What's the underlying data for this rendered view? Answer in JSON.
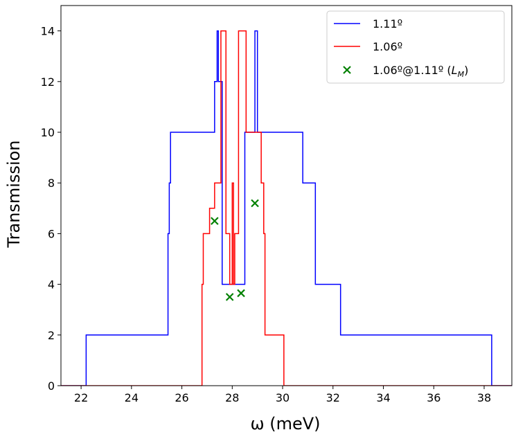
{
  "chart_data": {
    "type": "line",
    "xlabel": "ω (meV)",
    "ylabel": "Transmission",
    "xlim": [
      21.2,
      39.1
    ],
    "ylim": [
      0,
      15
    ],
    "xticks": [
      22,
      24,
      26,
      28,
      30,
      32,
      34,
      36,
      38
    ],
    "yticks": [
      0,
      2,
      4,
      6,
      8,
      10,
      12,
      14
    ],
    "grid": false,
    "legend_position": "top-right",
    "series": [
      {
        "name": "1.11º",
        "kind": "step",
        "color": "#0000ff",
        "x": [
          21.2,
          22.15,
          22.2,
          25.4,
          25.45,
          25.5,
          25.55,
          26.8,
          27.3,
          27.4,
          27.45,
          27.6,
          28.4,
          28.5,
          28.9,
          29.0,
          30.8,
          31.3,
          32.3,
          38.2,
          38.3,
          39.1
        ],
        "y": [
          0,
          0,
          2,
          2,
          6,
          8,
          10,
          10,
          12,
          14,
          12,
          4,
          4,
          10,
          14,
          10,
          8,
          4,
          2,
          2,
          0,
          0
        ]
      },
      {
        "name": "1.06º",
        "kind": "step",
        "color": "#ff0000",
        "x": [
          21.2,
          26.78,
          26.8,
          26.85,
          27.1,
          27.3,
          27.55,
          27.75,
          27.9,
          28.0,
          28.05,
          28.1,
          28.25,
          28.55,
          28.65,
          29.15,
          29.25,
          29.3,
          29.95,
          30.05,
          39.1
        ],
        "y": [
          0,
          0,
          4,
          6,
          7,
          8,
          14,
          6,
          4,
          8,
          4,
          6,
          14,
          10,
          10,
          8,
          6,
          2,
          2,
          0,
          0
        ]
      }
    ],
    "scatter": {
      "name": "1.06º@1.11º",
      "name_suffix": "(L_M)",
      "color": "#008000",
      "marker": "x",
      "x": [
        27.3,
        27.9,
        28.35,
        28.9
      ],
      "y": [
        6.5,
        3.5,
        3.65,
        7.2
      ]
    }
  }
}
